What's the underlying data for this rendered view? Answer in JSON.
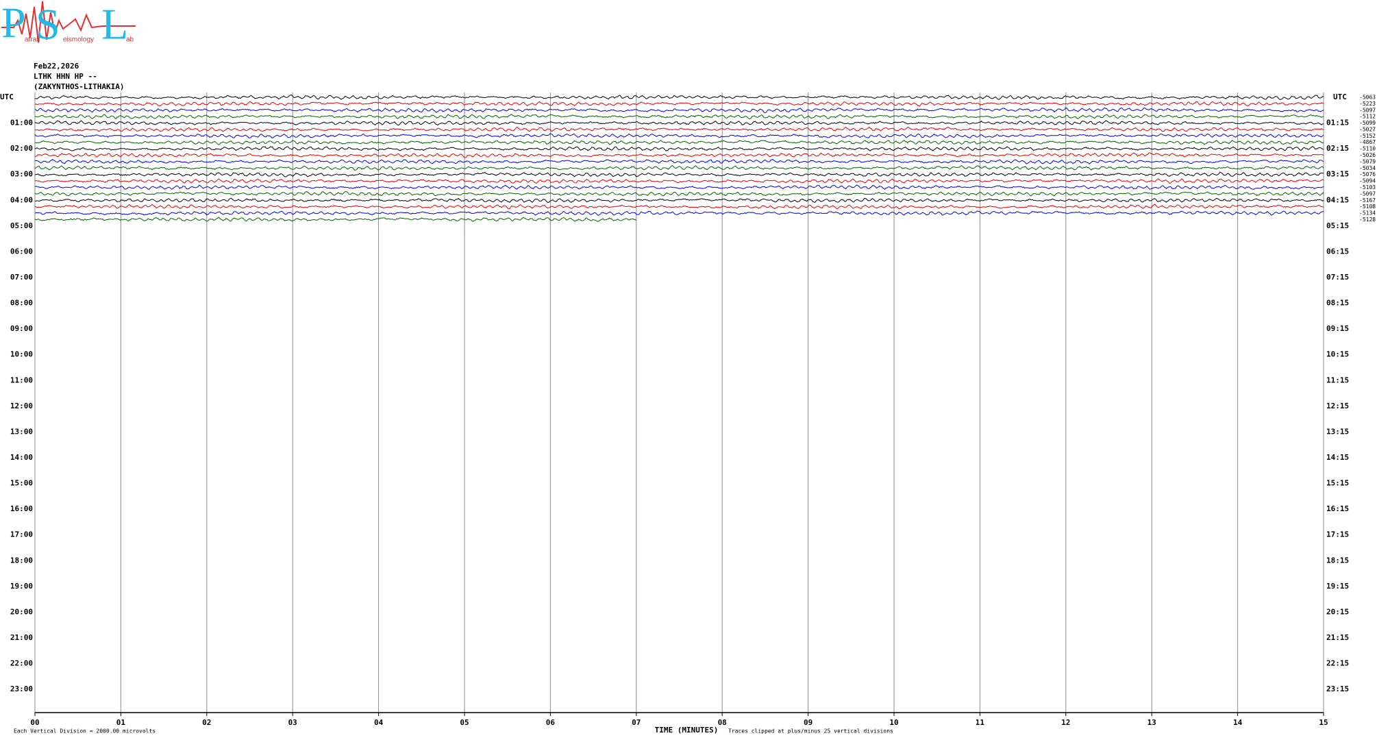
{
  "logo": {
    "letters": [
      "P",
      "S",
      "L"
    ],
    "words": [
      "atras",
      "eismology",
      "ab"
    ]
  },
  "header": {
    "date": "Feb22,2026",
    "station": "LTHK HHN HP --",
    "location": "(ZAKYNTHOS-LITHAKIA)"
  },
  "left_axis": {
    "title": "UTC",
    "labels": [
      "01:00",
      "02:00",
      "03:00",
      "04:00",
      "05:00",
      "06:00",
      "07:00",
      "08:00",
      "09:00",
      "10:00",
      "11:00",
      "12:00",
      "13:00",
      "14:00",
      "15:00",
      "16:00",
      "17:00",
      "18:00",
      "19:00",
      "20:00",
      "21:00",
      "22:00",
      "23:00"
    ]
  },
  "right_axis": {
    "title": "UTC",
    "labels": [
      "01:15",
      "02:15",
      "03:15",
      "04:15",
      "05:15",
      "06:15",
      "07:15",
      "08:15",
      "09:15",
      "10:15",
      "11:15",
      "12:15",
      "13:15",
      "14:15",
      "15:15",
      "16:15",
      "17:15",
      "18:15",
      "19:15",
      "20:15",
      "21:15",
      "22:15",
      "23:15"
    ]
  },
  "x_axis": {
    "title": "TIME (MINUTES)",
    "ticks": [
      "00",
      "01",
      "02",
      "03",
      "04",
      "05",
      "06",
      "07",
      "08",
      "09",
      "10",
      "11",
      "12",
      "13",
      "14",
      "15"
    ]
  },
  "traces": [
    {
      "offset": "-5063",
      "color": "#000000"
    },
    {
      "offset": "-5223",
      "color": "#e00000"
    },
    {
      "offset": "-5097",
      "color": "#0000e0"
    },
    {
      "offset": "-5112",
      "color": "#006000"
    },
    {
      "offset": "-5099",
      "color": "#000000"
    },
    {
      "offset": "-5027",
      "color": "#e00000"
    },
    {
      "offset": "-5152",
      "color": "#0000e0"
    },
    {
      "offset": "-4867",
      "color": "#006000"
    },
    {
      "offset": "-5110",
      "color": "#000000"
    },
    {
      "offset": "-5026",
      "color": "#e00000"
    },
    {
      "offset": "-5079",
      "color": "#0000e0"
    },
    {
      "offset": "-5034",
      "color": "#006000"
    },
    {
      "offset": "-5076",
      "color": "#000000"
    },
    {
      "offset": "-5094",
      "color": "#e00000"
    },
    {
      "offset": "-5103",
      "color": "#0000e0"
    },
    {
      "offset": "-5097",
      "color": "#006000"
    },
    {
      "offset": "-5167",
      "color": "#000000"
    },
    {
      "offset": "-5108",
      "color": "#e00000"
    },
    {
      "offset": "-5134",
      "color": "#0000e0"
    },
    {
      "offset": "-5128",
      "color": "#006000"
    }
  ],
  "data_end_minute": 7,
  "footer": {
    "scale": "Each Vertical Division = 2000.00 microvolts",
    "clip": "Traces clipped at plus/minus 25 vertical divisions"
  }
}
